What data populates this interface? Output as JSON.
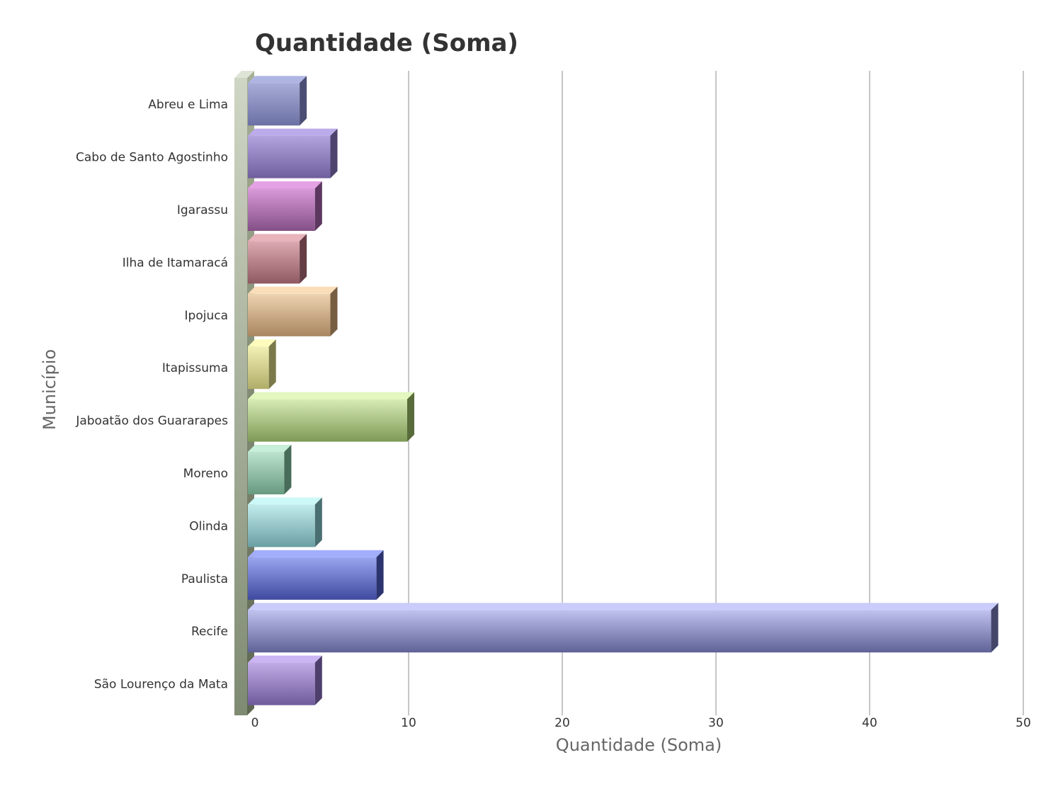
{
  "chart_data": {
    "type": "bar",
    "orientation": "horizontal",
    "title": "Quantidade (Soma)",
    "xlabel": "Quantidade (Soma)",
    "ylabel": "Município",
    "xlim": [
      0,
      50
    ],
    "xticks": [
      0,
      10,
      20,
      30,
      40,
      50
    ],
    "grid": true,
    "legend": "none",
    "categories": [
      "Abreu e Lima",
      "Cabo de Santo Agostinho",
      "Igarassu",
      "Ilha de Itamaracá",
      "Ipojuca",
      "Itapissuma",
      "Jaboatão dos Guararapes",
      "Moreno",
      "Olinda",
      "Paulista",
      "Recife",
      "São Lourenço da Mata"
    ],
    "values": [
      3,
      5,
      4,
      3,
      5,
      1,
      10,
      2,
      4,
      8,
      48,
      4
    ],
    "colors": [
      [
        "#a7acd8",
        "#6b70a4"
      ],
      [
        "#b3a3df",
        "#6f5f9c"
      ],
      [
        "#d99ad9",
        "#844f87"
      ],
      [
        "#ddaab2",
        "#8f5961"
      ],
      [
        "#eed3b0",
        "#a88660"
      ],
      [
        "#f2f0b4",
        "#b0ad6a"
      ],
      [
        "#d8ebb6",
        "#7d9a55"
      ],
      [
        "#bde3cf",
        "#679a80"
      ],
      [
        "#c2ecec",
        "#6a9fa3"
      ],
      [
        "#9aa5ef",
        "#3f4a9f"
      ],
      [
        "#c0c2ef",
        "#5f6296"
      ],
      [
        "#c2ace7",
        "#6f5a9a"
      ]
    ]
  }
}
